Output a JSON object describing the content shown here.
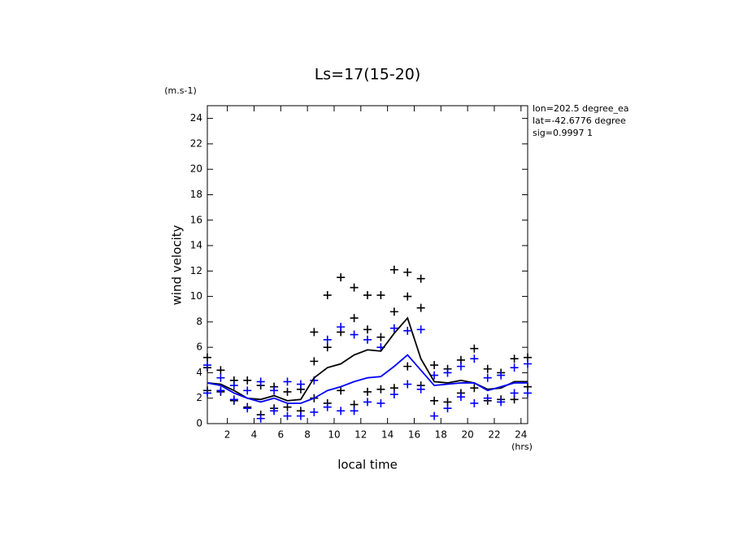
{
  "chart_data": {
    "type": "line",
    "title": "Ls=17(15-20)",
    "y_unit": "(m.s-1)",
    "x_unit": "(hrs)",
    "ylabel": "wind velocity",
    "xlabel": "local time",
    "annotations": [
      "lon=202.5 degree_ea",
      "lat=-42.6776 degree",
      "sig=0.9997 1"
    ],
    "xlim": [
      0.5,
      24.5
    ],
    "ylim": [
      0,
      25
    ],
    "xticks": [
      2,
      4,
      6,
      8,
      10,
      12,
      14,
      16,
      18,
      20,
      22,
      24
    ],
    "yticks": [
      0,
      2,
      4,
      6,
      8,
      10,
      12,
      14,
      16,
      18,
      20,
      22,
      24
    ],
    "series": [
      {
        "type": "scatter",
        "color": "#000000",
        "x": [
          0.5,
          0.5,
          0.5,
          1.5,
          1.5,
          2.5,
          2.5,
          3.5,
          3.5,
          4.5,
          4.5,
          5.5,
          5.5,
          6.5,
          6.5,
          7.5,
          7.5,
          8.5,
          8.5,
          8.5,
          9.5,
          9.5,
          9.5,
          10.5,
          10.5,
          10.5,
          11.5,
          11.5,
          11.5,
          12.5,
          12.5,
          12.5,
          13.5,
          13.5,
          13.5,
          14.5,
          14.5,
          14.5,
          15.5,
          15.5,
          15.5,
          16.5,
          16.5,
          16.5,
          17.5,
          17.5,
          18.5,
          18.5,
          19.5,
          19.5,
          20.5,
          20.5,
          21.5,
          21.5,
          22.5,
          22.5,
          23.5,
          23.5,
          24.5,
          24.5
        ],
        "values": [
          5.2,
          4.4,
          2.6,
          4.2,
          2.5,
          3.4,
          1.8,
          3.4,
          1.3,
          3.0,
          0.7,
          2.9,
          1.2,
          2.5,
          1.3,
          2.7,
          1.0,
          7.2,
          4.9,
          2.0,
          10.1,
          6.0,
          1.6,
          11.5,
          7.2,
          2.6,
          10.7,
          8.3,
          1.5,
          10.1,
          7.4,
          2.5,
          10.1,
          6.8,
          2.7,
          12.1,
          8.8,
          2.8,
          11.9,
          10.0,
          4.5,
          11.4,
          9.1,
          3.0,
          4.6,
          1.8,
          4.3,
          1.7,
          5.0,
          2.4,
          5.9,
          2.8,
          4.3,
          1.8,
          4.0,
          1.9,
          5.1,
          1.9,
          5.2,
          2.9
        ]
      },
      {
        "type": "scatter",
        "color": "#0000ff",
        "x": [
          0.5,
          0.5,
          1.5,
          1.5,
          2.5,
          2.5,
          3.5,
          3.5,
          4.5,
          4.5,
          5.5,
          5.5,
          6.5,
          6.5,
          7.5,
          7.5,
          8.5,
          8.5,
          9.5,
          9.5,
          10.5,
          10.5,
          11.5,
          11.5,
          12.5,
          12.5,
          13.5,
          13.5,
          14.5,
          14.5,
          15.5,
          15.5,
          16.5,
          16.5,
          17.5,
          17.5,
          18.5,
          18.5,
          19.5,
          19.5,
          20.5,
          20.5,
          21.5,
          21.5,
          22.5,
          22.5,
          23.5,
          23.5,
          24.5,
          24.5
        ],
        "values": [
          4.6,
          2.4,
          3.6,
          2.6,
          3.0,
          1.9,
          2.6,
          1.2,
          3.3,
          0.4,
          2.6,
          1.0,
          3.3,
          0.6,
          3.1,
          0.6,
          3.4,
          0.9,
          6.6,
          1.3,
          7.6,
          1.0,
          7.0,
          1.0,
          6.6,
          1.7,
          6.0,
          1.6,
          7.5,
          2.3,
          7.3,
          3.1,
          7.4,
          2.7,
          3.8,
          0.6,
          4.0,
          1.2,
          4.5,
          2.1,
          5.1,
          1.6,
          3.6,
          2.0,
          3.8,
          1.7,
          4.4,
          2.4,
          4.7,
          2.4
        ]
      },
      {
        "type": "line",
        "color": "#000000",
        "x": [
          0.5,
          1.5,
          2.5,
          3.5,
          4.5,
          5.5,
          6.5,
          7.5,
          8.5,
          9.5,
          10.5,
          11.5,
          12.5,
          13.5,
          14.5,
          15.5,
          16.5,
          17.5,
          18.5,
          19.5,
          20.5,
          21.5,
          22.5,
          23.5,
          24.5
        ],
        "values": [
          3.2,
          3.1,
          2.6,
          2.0,
          1.9,
          2.2,
          1.8,
          1.9,
          3.6,
          4.4,
          4.7,
          5.4,
          5.8,
          5.7,
          7.1,
          8.3,
          5.1,
          3.3,
          3.2,
          3.4,
          3.2,
          2.7,
          2.8,
          3.3,
          3.3
        ]
      },
      {
        "type": "line",
        "color": "#0000ff",
        "x": [
          0.5,
          1.5,
          2.5,
          3.5,
          4.5,
          5.5,
          6.5,
          7.5,
          8.5,
          9.5,
          10.5,
          11.5,
          12.5,
          13.5,
          14.5,
          15.5,
          16.5,
          17.5,
          18.5,
          19.5,
          20.5,
          21.5,
          22.5,
          23.5,
          24.5
        ],
        "values": [
          3.2,
          3.0,
          2.4,
          2.0,
          1.7,
          2.0,
          1.6,
          1.6,
          2.0,
          2.6,
          2.9,
          3.3,
          3.6,
          3.7,
          4.5,
          5.4,
          4.2,
          3.0,
          3.1,
          3.2,
          3.2,
          2.6,
          2.9,
          3.2,
          3.2
        ]
      }
    ]
  }
}
